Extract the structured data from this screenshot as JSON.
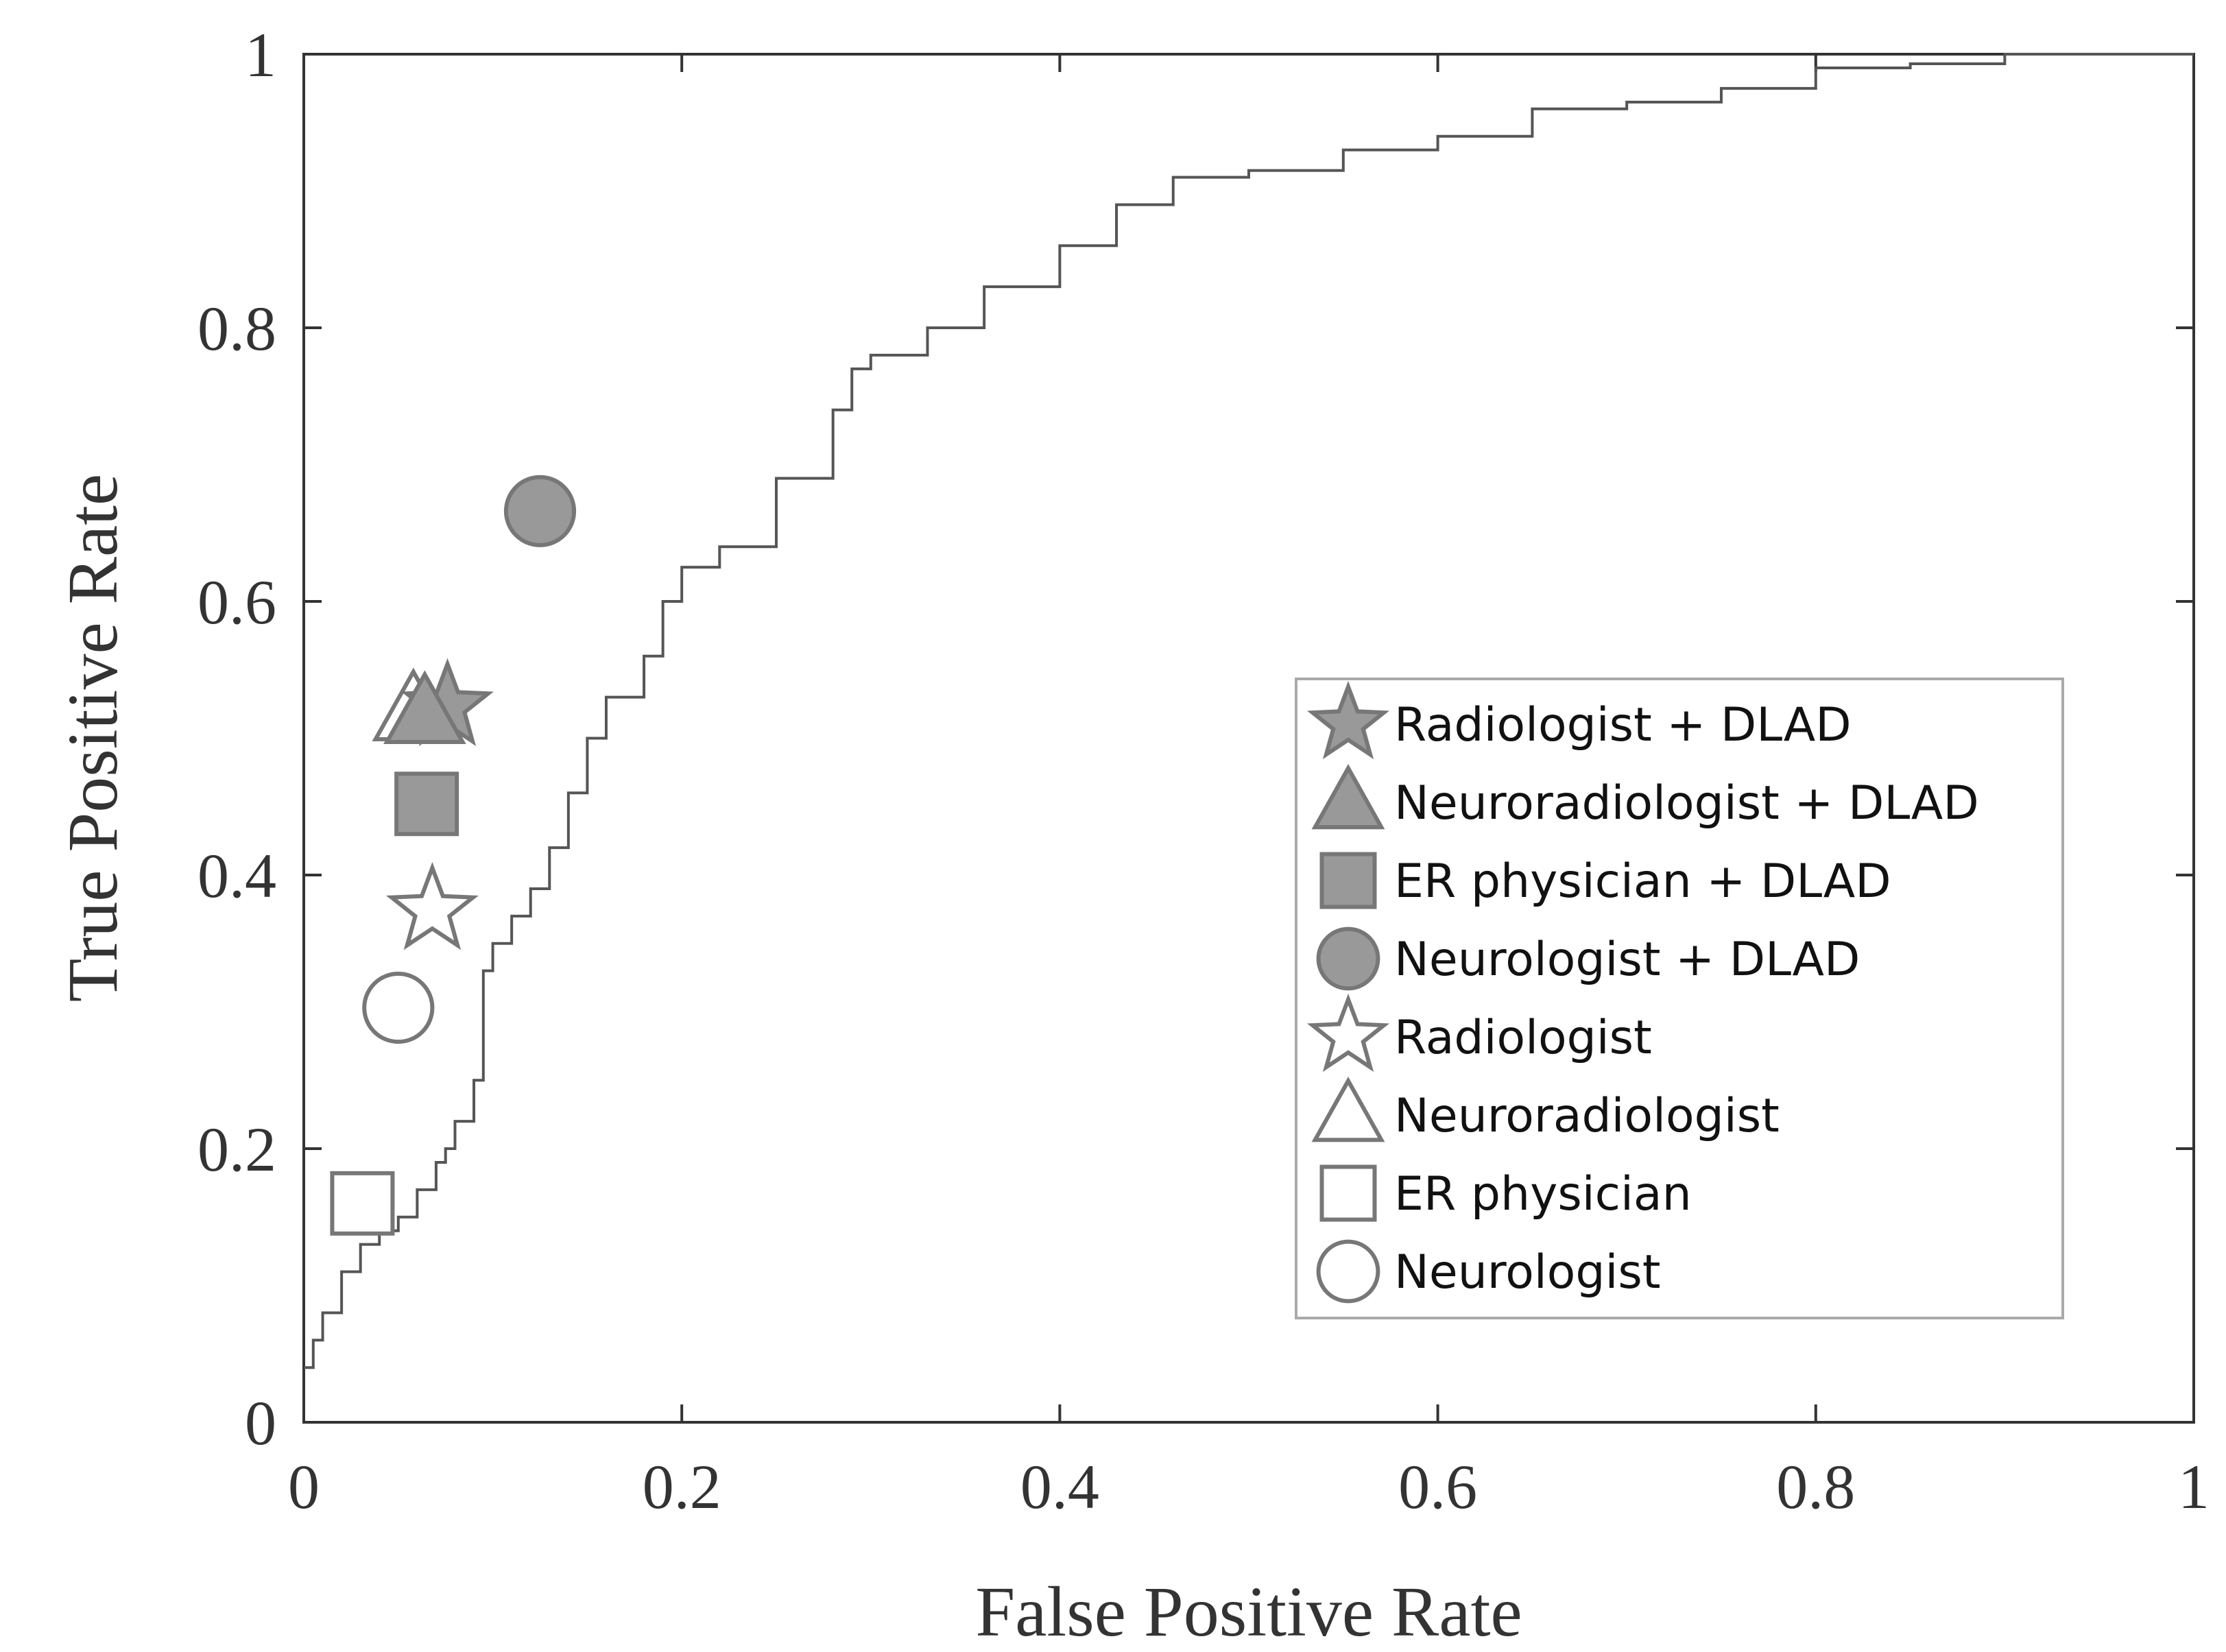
{
  "chart_data": {
    "type": "line",
    "title": "",
    "xlabel": "False Positive Rate",
    "ylabel": "True Positive Rate",
    "xlim": [
      0,
      1
    ],
    "ylim": [
      0,
      1
    ],
    "xticks": [
      0,
      0.2,
      0.4,
      0.6,
      0.8,
      1
    ],
    "yticks": [
      0,
      0.2,
      0.4,
      0.6,
      0.8,
      1
    ],
    "xtick_labels": [
      "0",
      "0.2",
      "0.4",
      "0.6",
      "0.8",
      "1"
    ],
    "ytick_labels": [
      "0",
      "0.2",
      "0.4",
      "0.6",
      "0.8",
      "1"
    ],
    "grid": false,
    "legend_position": "center-right",
    "roc_curve": {
      "name": "DLAD",
      "points": [
        [
          0,
          0.04
        ],
        [
          0.005,
          0.06
        ],
        [
          0.01,
          0.08
        ],
        [
          0.02,
          0.11
        ],
        [
          0.03,
          0.13
        ],
        [
          0.04,
          0.14
        ],
        [
          0.05,
          0.15
        ],
        [
          0.06,
          0.17
        ],
        [
          0.07,
          0.19
        ],
        [
          0.075,
          0.2
        ],
        [
          0.08,
          0.22
        ],
        [
          0.09,
          0.25
        ],
        [
          0.095,
          0.33
        ],
        [
          0.1,
          0.35
        ],
        [
          0.11,
          0.37
        ],
        [
          0.12,
          0.39
        ],
        [
          0.13,
          0.42
        ],
        [
          0.14,
          0.46
        ],
        [
          0.15,
          0.5
        ],
        [
          0.16,
          0.53
        ],
        [
          0.18,
          0.56
        ],
        [
          0.19,
          0.6
        ],
        [
          0.2,
          0.625
        ],
        [
          0.22,
          0.64
        ],
        [
          0.25,
          0.69
        ],
        [
          0.28,
          0.74
        ],
        [
          0.29,
          0.77
        ],
        [
          0.3,
          0.78
        ],
        [
          0.33,
          0.8
        ],
        [
          0.36,
          0.83
        ],
        [
          0.4,
          0.86
        ],
        [
          0.43,
          0.89
        ],
        [
          0.46,
          0.91
        ],
        [
          0.5,
          0.915
        ],
        [
          0.55,
          0.93
        ],
        [
          0.6,
          0.94
        ],
        [
          0.65,
          0.96
        ],
        [
          0.7,
          0.965
        ],
        [
          0.75,
          0.975
        ],
        [
          0.8,
          0.99
        ],
        [
          0.85,
          0.993
        ],
        [
          0.9,
          1
        ],
        [
          1,
          1
        ]
      ]
    },
    "readers": [
      {
        "name": "Radiologist + DLAD",
        "marker": "star",
        "filled": true,
        "fpr": 0.076,
        "tpr": 0.523
      },
      {
        "name": "Neuroradiologist + DLAD",
        "marker": "triangle",
        "filled": true,
        "fpr": 0.064,
        "tpr": 0.518
      },
      {
        "name": "ER physician + DLAD",
        "marker": "square",
        "filled": true,
        "fpr": 0.065,
        "tpr": 0.452
      },
      {
        "name": "Neurologist + DLAD",
        "marker": "circle",
        "filled": true,
        "fpr": 0.125,
        "tpr": 0.666
      },
      {
        "name": "Radiologist",
        "marker": "star",
        "filled": false,
        "fpr": 0.068,
        "tpr": 0.374
      },
      {
        "name": "Neuroradiologist",
        "marker": "triangle",
        "filled": false,
        "fpr": 0.058,
        "tpr": 0.52
      },
      {
        "name": "ER physician",
        "marker": "square",
        "filled": false,
        "fpr": 0.031,
        "tpr": 0.16
      },
      {
        "name": "Neurologist",
        "marker": "circle",
        "filled": false,
        "fpr": 0.05,
        "tpr": 0.303
      }
    ],
    "colors": {
      "axis": "#333333",
      "curve": "#555555",
      "marker_stroke": "#777777",
      "marker_fill": "#999999",
      "legend_border": "#aaaaaa"
    }
  }
}
